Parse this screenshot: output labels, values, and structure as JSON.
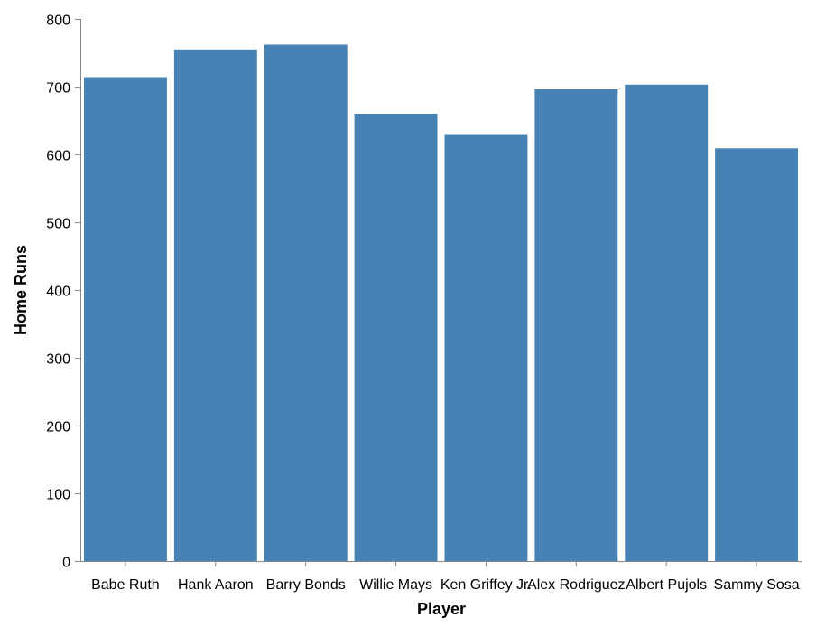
{
  "chart_data": {
    "type": "bar",
    "title": "",
    "xlabel": "Player",
    "ylabel": "Home Runs",
    "categories": [
      "Babe Ruth",
      "Hank Aaron",
      "Barry Bonds",
      "Willie Mays",
      "Ken Griffey Jr.",
      "Alex Rodriguez",
      "Albert Pujols",
      "Sammy Sosa"
    ],
    "values": [
      714,
      755,
      762,
      660,
      630,
      696,
      703,
      609
    ],
    "ylim": [
      0,
      800
    ],
    "yticks": [
      0,
      100,
      200,
      300,
      400,
      500,
      600,
      700,
      800
    ],
    "grid": false,
    "bar_color": "#4682b4",
    "axis_color": "#888888"
  }
}
